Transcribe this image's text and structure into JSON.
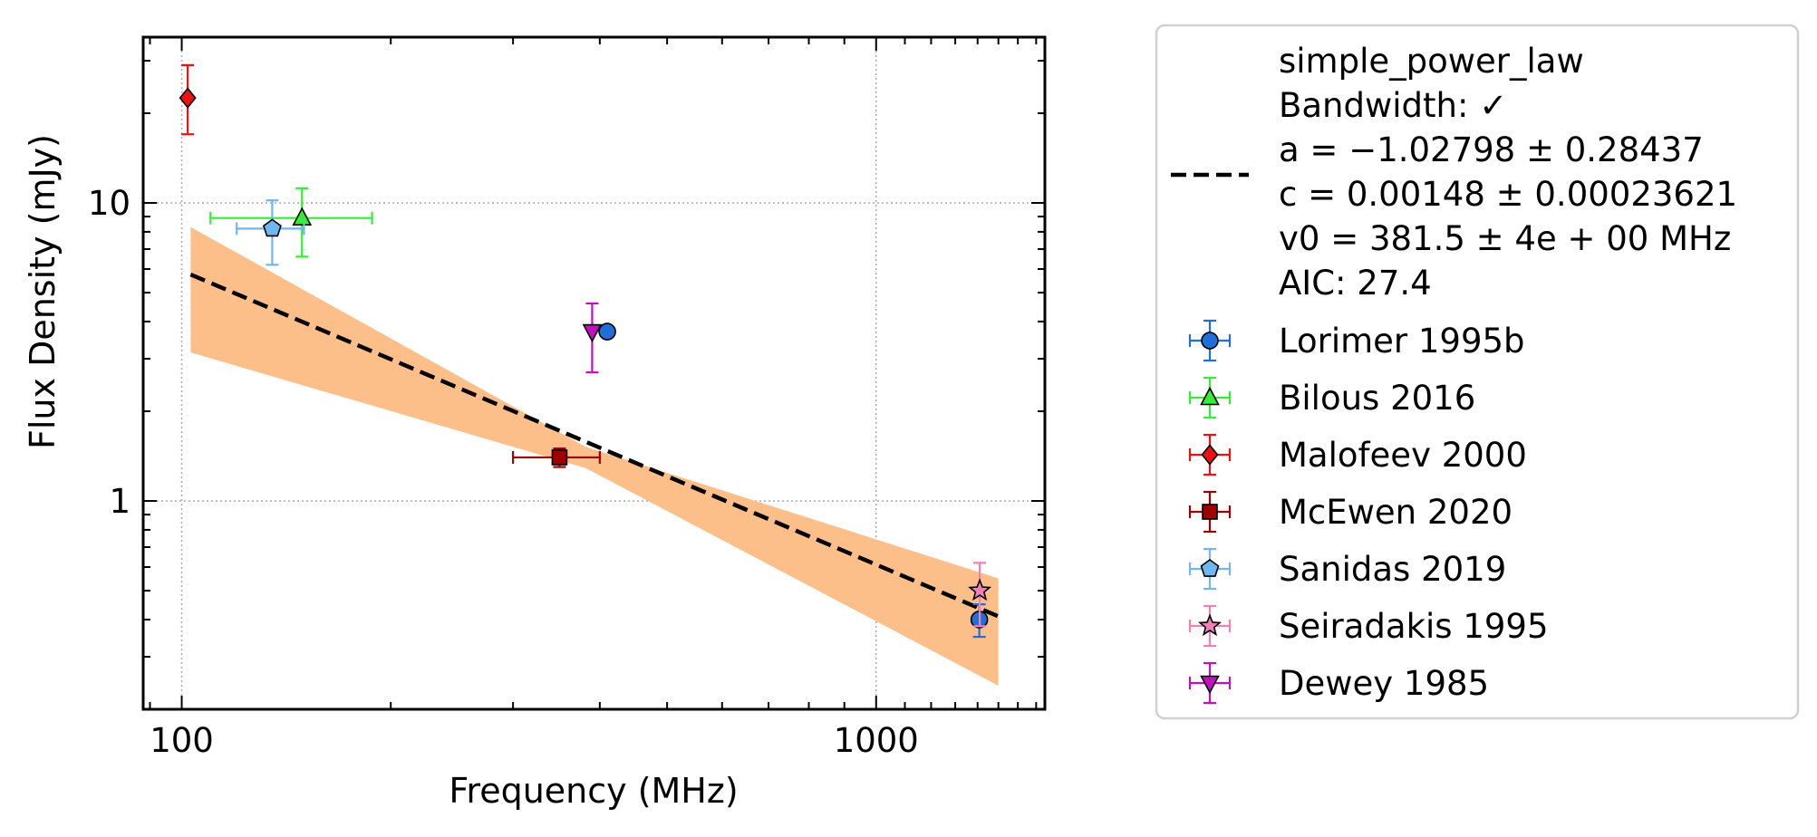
{
  "chart_data": {
    "type": "scatter",
    "xlabel": "Frequency (MHz)",
    "ylabel": "Flux Density (mJy)",
    "xscale": "log",
    "yscale": "log",
    "xlim": [
      88,
      1750
    ],
    "ylim": [
      0.2,
      36
    ],
    "x_ticks": [
      {
        "value": 100,
        "label": "100"
      },
      {
        "value": 1000,
        "label": "1000"
      }
    ],
    "y_ticks": [
      {
        "value": 1,
        "label": "1"
      },
      {
        "value": 10,
        "label": "10"
      }
    ],
    "grid": true,
    "legend_position": "outside-right",
    "fit": {
      "label_lines": [
        "simple_power_law",
        "Bandwidth: ✓",
        "a = −1.02798 ± 0.28437",
        "c = 0.00148 ± 0.00023621",
        "v0 = 381.5 ± 4e + 00 MHz",
        "AIC: 27.4"
      ],
      "color": "#000000",
      "band_color": "#fdbf8a",
      "line": [
        {
          "x": 103,
          "y": 5.75
        },
        {
          "x": 1500,
          "y": 0.41
        }
      ],
      "band": [
        {
          "x": 103,
          "upper": 8.3,
          "lower": 3.15
        },
        {
          "x": 381.5,
          "upper": 1.52,
          "lower": 1.29
        },
        {
          "x": 1500,
          "upper": 0.55,
          "lower": 0.24
        }
      ]
    },
    "series": [
      {
        "name": "Lorimer 1995b",
        "color": "#1f6fd6",
        "marker": "circle",
        "points": [
          {
            "x": 410,
            "y": 3.7,
            "yerr": 0.1,
            "xerr": 0
          },
          {
            "x": 1408,
            "y": 0.4,
            "yerr": 0.05,
            "xerr": 0
          }
        ]
      },
      {
        "name": "Bilous 2016",
        "color": "#33ee33",
        "marker": "triangle-up",
        "points": [
          {
            "x": 149,
            "y": 8.9,
            "yerr": 2.3,
            "xerr_lo": 39,
            "xerr_hi": 39
          }
        ]
      },
      {
        "name": "Malofeev 2000",
        "color": "#ee1111",
        "marker": "diamond",
        "points": [
          {
            "x": 102,
            "y": 22.5,
            "yerr_lo": 5.5,
            "yerr_hi": 6.5,
            "xerr": 0
          }
        ]
      },
      {
        "name": "McEwen 2020",
        "color": "#a10000",
        "marker": "square",
        "points": [
          {
            "x": 350,
            "y": 1.4,
            "yerr": 0.1,
            "xerr_lo": 50,
            "xerr_hi": 50
          }
        ]
      },
      {
        "name": "Sanidas 2019",
        "color": "#6fb7f0",
        "marker": "pentagon",
        "points": [
          {
            "x": 135,
            "y": 8.2,
            "yerr": 2.0,
            "xerr_lo": 15,
            "xerr_hi": 15
          }
        ]
      },
      {
        "name": "Seiradakis 1995",
        "color": "#f080b8",
        "marker": "star",
        "points": [
          {
            "x": 1410,
            "y": 0.5,
            "yerr": 0.12,
            "xerr": 0
          }
        ]
      },
      {
        "name": "Dewey 1985",
        "color": "#c010c0",
        "marker": "triangle-down",
        "points": [
          {
            "x": 390,
            "y": 3.7,
            "yerr_lo": 1.0,
            "yerr_hi": 0.9,
            "xerr": 0
          }
        ]
      }
    ]
  }
}
